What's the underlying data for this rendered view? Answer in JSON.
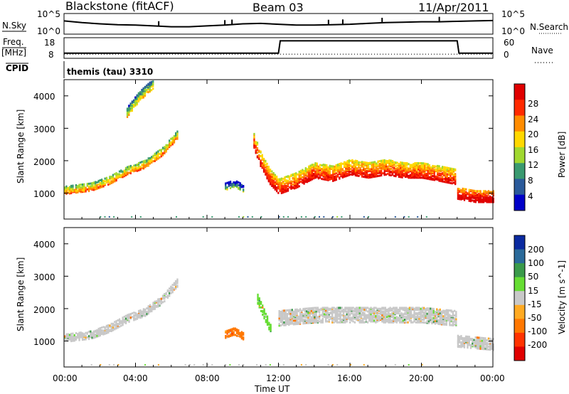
{
  "header": {
    "station": "Blackstone (fitACF)",
    "beam": "Beam 03",
    "date": "11/Apr/2011"
  },
  "noise_panel": {
    "left_label": "N.Sky",
    "left_ticks": [
      "10^5",
      "10^0"
    ],
    "right_label": "N.Search",
    "right_ticks": [
      "10^5",
      "10^0"
    ]
  },
  "freq_panel": {
    "left_label_1": "Freq.",
    "left_label_2": "[MHz]",
    "left_ticks": [
      "18",
      "8"
    ],
    "right_label": "Nave",
    "right_ticks": [
      "60",
      "0"
    ]
  },
  "cpid_panel": {
    "label": "CPID",
    "mode": "themis (tau) 3310"
  },
  "power_panel": {
    "ylabel": "Slant Range [km]",
    "yticks": [
      "4000",
      "3000",
      "2000",
      "1000"
    ],
    "colorbar_label": "Power [dB]",
    "colorbar_ticks": [
      "28",
      "24",
      "20",
      "16",
      "12",
      "8",
      "4"
    ],
    "colorbar_colors": [
      "#e00000",
      "#ff2a00",
      "#ff8c00",
      "#ffd800",
      "#a0d830",
      "#3a9a70",
      "#2a5a9a",
      "#0000c8"
    ]
  },
  "velocity_panel": {
    "ylabel": "Slant Range [km]",
    "yticks": [
      "4000",
      "3000",
      "2000",
      "1000"
    ],
    "colorbar_label": "Velocity [m s^-1]",
    "colorbar_ticks": [
      "200",
      "100",
      "50",
      "15",
      "-15",
      "-50",
      "-100",
      "-200"
    ],
    "colorbar_colors": [
      "#0a2aa0",
      "#2a6a9a",
      "#3a9a4a",
      "#66dd33",
      "#c8c8c8",
      "#ffaa22",
      "#ff7700",
      "#ff3300",
      "#e00000"
    ]
  },
  "xaxis": {
    "label": "Time UT",
    "ticks": [
      "00:00",
      "04:00",
      "08:00",
      "12:00",
      "16:00",
      "20:00",
      "00:00"
    ]
  },
  "chart_data": [
    {
      "type": "line",
      "title": "Blackstone (fitACF) Beam 03 11/Apr/2011",
      "series": [
        {
          "name": "N.Sky",
          "x": [
            0,
            1,
            2,
            3,
            4,
            5,
            6,
            7,
            8,
            9,
            10,
            11,
            12,
            13,
            14,
            15,
            16,
            17,
            18,
            19,
            20,
            21,
            22,
            23,
            24
          ],
          "y": [
            3.2,
            2.8,
            2.5,
            2.3,
            2.2,
            2.0,
            1.8,
            1.8,
            2.0,
            2.2,
            2.5,
            2.6,
            2.4,
            2.2,
            2.2,
            2.3,
            2.4,
            2.6,
            2.8,
            2.9,
            3.0,
            3.0,
            3.1,
            3.2,
            3.3
          ]
        }
      ],
      "spikes_x": [
        5.3,
        9.0,
        9.4,
        14.8,
        15.6,
        17.8,
        21.0
      ],
      "ylim": [
        0,
        5
      ],
      "log_scale": true
    },
    {
      "type": "line",
      "series": [
        {
          "name": "Freq.",
          "x": [
            0,
            12,
            12.1,
            22,
            22.1,
            24
          ],
          "y": [
            10.5,
            10.5,
            16.5,
            16.5,
            10.5,
            10.5
          ]
        },
        {
          "name": "Nave",
          "x": [
            0,
            24
          ],
          "y": [
            12,
            12
          ]
        }
      ],
      "ylim_freq": [
        8,
        18
      ],
      "ylim_nave": [
        0,
        60
      ]
    },
    {
      "type": "heatmap",
      "quantity": "Power [dB]",
      "x_range": [
        0,
        24
      ],
      "y_range": [
        200,
        4500
      ],
      "clim": [
        0,
        30
      ],
      "echo_bands": [
        {
          "x": [
            0.0,
            1.5,
            2.5,
            3.5,
            4.5,
            5.5,
            6.3
          ],
          "y": [
            1100,
            1200,
            1400,
            1700,
            1900,
            2300,
            2800
          ],
          "width": 250,
          "power": 16
        },
        {
          "x": [
            3.5,
            4.2,
            5.0
          ],
          "y": [
            3500,
            4000,
            4400
          ],
          "width": 300,
          "power": 12
        },
        {
          "x": [
            10.6,
            11.0,
            11.5,
            12.0,
            13.0,
            14.0,
            15.0,
            16.0,
            17.0,
            18.0,
            19.0,
            20.0,
            21.0,
            21.9
          ],
          "y": [
            2600,
            2000,
            1500,
            1200,
            1400,
            1700,
            1600,
            1800,
            1700,
            1800,
            1700,
            1700,
            1600,
            1500
          ],
          "width": 450,
          "power": 22
        },
        {
          "x": [
            22.0,
            23.0,
            24.0
          ],
          "y": [
            1000,
            900,
            900
          ],
          "width": 350,
          "power": 26
        },
        {
          "x": [
            9.0,
            9.5,
            10.0
          ],
          "y": [
            1200,
            1300,
            1150
          ],
          "width": 200,
          "power": 6
        }
      ]
    },
    {
      "type": "heatmap",
      "quantity": "Velocity [m s^-1]",
      "x_range": [
        0,
        24
      ],
      "y_range": [
        200,
        4500
      ],
      "clim": [
        -200,
        200
      ],
      "echo_bands": [
        {
          "x": [
            0.0,
            1.5,
            2.5,
            3.5,
            4.5,
            5.5,
            6.3
          ],
          "y": [
            1100,
            1200,
            1400,
            1700,
            1900,
            2300,
            2800
          ],
          "width": 250,
          "velocity": 0
        },
        {
          "x": [
            10.8,
            11.2,
            11.6
          ],
          "y": [
            2300,
            1800,
            1300
          ],
          "width": 300,
          "velocity": 30
        },
        {
          "x": [
            12.0,
            14.0,
            16.0,
            18.0,
            20.0,
            21.9
          ],
          "y": [
            1700,
            1800,
            1800,
            1800,
            1800,
            1700
          ],
          "width": 450,
          "velocity": 0
        },
        {
          "x": [
            9.0,
            9.5,
            10.0
          ],
          "y": [
            1200,
            1300,
            1150
          ],
          "width": 200,
          "velocity": -60
        },
        {
          "x": [
            22.0,
            23.0,
            24.0
          ],
          "y": [
            1000,
            950,
            900
          ],
          "width": 350,
          "velocity": 0
        }
      ]
    }
  ]
}
